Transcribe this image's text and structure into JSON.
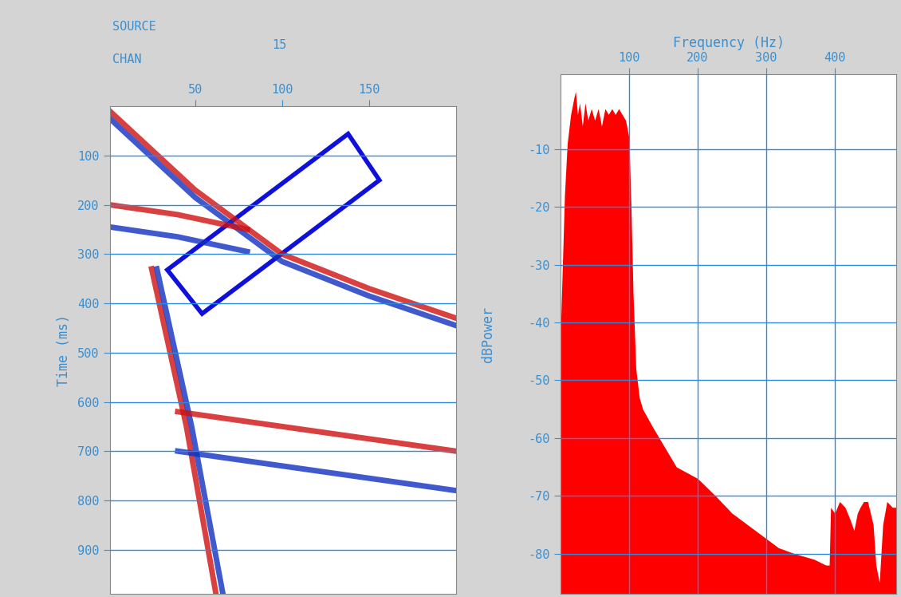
{
  "chart_data": [
    {
      "type": "line",
      "header_label": "SOURCE",
      "header_value": 15,
      "x_label": "CHAN",
      "y_label": "Time (ms)",
      "xlim": [
        1,
        200
      ],
      "xticks": [
        50,
        100,
        150
      ],
      "ylim": [
        990,
        0
      ],
      "yticks": [
        100,
        200,
        300,
        400,
        500,
        600,
        700,
        800,
        900
      ],
      "grid": "y",
      "series": [
        {
          "color": "#d01010",
          "x": [
            1,
            50,
            100,
            150,
            200
          ],
          "values": [
            10,
            170,
            300,
            370,
            430
          ]
        },
        {
          "color": "#1030c0",
          "x": [
            1,
            50,
            100,
            150,
            200
          ],
          "values": [
            25,
            185,
            315,
            385,
            445
          ]
        },
        {
          "color": "#d01010",
          "x": [
            1,
            40,
            80
          ],
          "values": [
            200,
            220,
            250
          ]
        },
        {
          "color": "#1030c0",
          "x": [
            1,
            40,
            80
          ],
          "values": [
            245,
            265,
            295
          ]
        },
        {
          "color": "#d01010",
          "x": [
            25,
            45,
            62
          ],
          "values": [
            330,
            650,
            990
          ]
        },
        {
          "color": "#1030c0",
          "x": [
            28,
            48,
            66
          ],
          "values": [
            330,
            650,
            990
          ]
        },
        {
          "color": "#d01010",
          "x": [
            40,
            200
          ],
          "values": [
            620,
            700
          ]
        },
        {
          "color": "#1030c0",
          "x": [
            40,
            200
          ],
          "values": [
            700,
            780
          ]
        }
      ],
      "highlight": {
        "color": "#1010dd",
        "x": [
          138,
          156,
          54,
          34
        ],
        "y": [
          56,
          150,
          421,
          332
        ]
      }
    },
    {
      "type": "area",
      "x_label": "Frequency (Hz)",
      "y_label": "dBPower",
      "color": "#ff0000",
      "xlim": [
        0,
        490
      ],
      "xticks": [
        100,
        200,
        300,
        400
      ],
      "ylim": [
        -87,
        3
      ],
      "yticks": [
        -10,
        -20,
        -30,
        -40,
        -50,
        -60,
        -70,
        -80
      ],
      "grid": true,
      "x": [
        0,
        3,
        6,
        10,
        15,
        20,
        22,
        25,
        28,
        32,
        36,
        40,
        45,
        50,
        55,
        60,
        65,
        70,
        75,
        80,
        85,
        90,
        95,
        100,
        103,
        106,
        110,
        115,
        120,
        134,
        169,
        200,
        226,
        250,
        284,
        318,
        341,
        370,
        387,
        392,
        394,
        400,
        407,
        415,
        422,
        428,
        433,
        437,
        442,
        448,
        452,
        456,
        460,
        465,
        470,
        476,
        484,
        490
      ],
      "values": [
        -42,
        -30,
        -18,
        -9,
        -4,
        -1,
        0,
        -4,
        -2,
        -6,
        -2,
        -5,
        -3,
        -5,
        -3,
        -6,
        -3,
        -4,
        -3,
        -4,
        -3,
        -4,
        -5,
        -8,
        -20,
        -35,
        -48,
        -53,
        -55,
        -58,
        -65,
        -67,
        -70,
        -73,
        -76,
        -79,
        -80,
        -81,
        -82,
        -82,
        -72,
        -73,
        -71,
        -72,
        -74,
        -76,
        -73,
        -72,
        -71,
        -71,
        -73,
        -75,
        -82,
        -85,
        -75,
        -71,
        -72,
        -72
      ]
    }
  ]
}
